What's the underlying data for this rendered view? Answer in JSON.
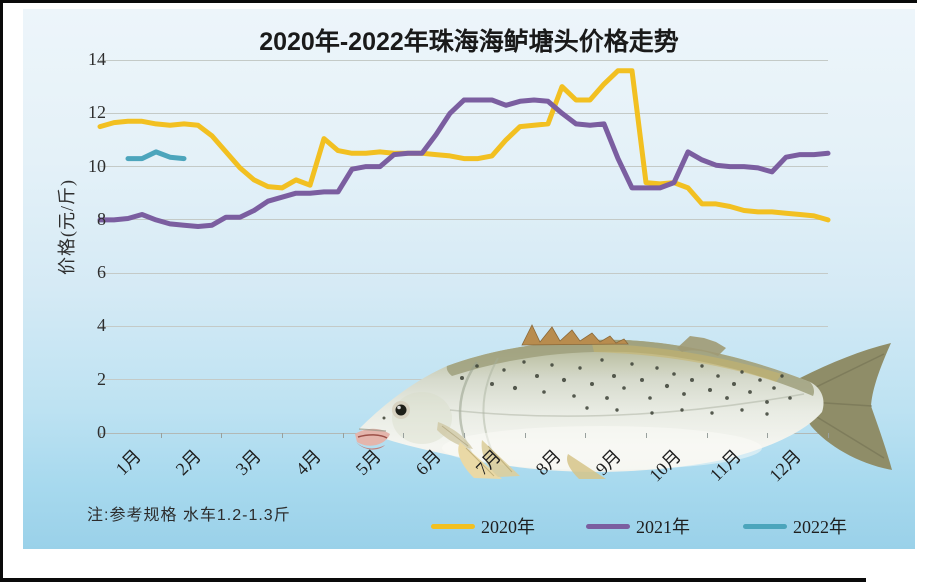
{
  "slide": {
    "title": "2020年-2022年珠海海鲈塘头价格走势",
    "note": "注:参考规格  水车1.2-1.3斤"
  },
  "chart_data": {
    "type": "line",
    "title": "2020年-2022年珠海海鲈塘头价格走势",
    "xlabel": "",
    "ylabel": "价格(元/斤)",
    "ylim": [
      0,
      14
    ],
    "yticks": [
      0,
      2,
      4,
      6,
      8,
      10,
      12,
      14
    ],
    "grid": true,
    "legend_position": "bottom",
    "x_unit": "week",
    "weeks_per_year": 52,
    "categories": [
      "1月",
      "2月",
      "3月",
      "4月",
      "5月",
      "6月",
      "7月",
      "8月",
      "9月",
      "10月",
      "11月",
      "12月"
    ],
    "series": [
      {
        "name": "2020年",
        "color": "#F2C021",
        "start_week": 0,
        "values": [
          11.5,
          11.65,
          11.7,
          11.7,
          11.6,
          11.55,
          11.6,
          11.55,
          11.15,
          10.55,
          9.95,
          9.5,
          9.25,
          9.2,
          9.5,
          9.3,
          11.05,
          10.6,
          10.5,
          10.5,
          10.55,
          10.5,
          10.5,
          10.5,
          10.45,
          10.4,
          10.3,
          10.3,
          10.4,
          11.0,
          11.5,
          11.55,
          11.6,
          13.0,
          12.5,
          12.5,
          13.1,
          13.6,
          13.6,
          9.4,
          9.35,
          9.4,
          9.2,
          8.6,
          8.6,
          8.5,
          8.35,
          8.3,
          8.3,
          8.25,
          8.2,
          8.15,
          8.0
        ]
      },
      {
        "name": "2021年",
        "color": "#7B5EA0",
        "start_week": 0,
        "values": [
          8.0,
          8.0,
          8.05,
          8.2,
          8.0,
          7.85,
          7.8,
          7.75,
          7.8,
          8.1,
          8.1,
          8.35,
          8.7,
          8.85,
          9.0,
          9.0,
          9.05,
          9.05,
          9.9,
          10.0,
          10.0,
          10.45,
          10.5,
          10.5,
          11.2,
          12.0,
          12.5,
          12.5,
          12.5,
          12.3,
          12.45,
          12.5,
          12.45,
          12.0,
          11.6,
          11.55,
          11.6,
          10.3,
          9.2,
          9.2,
          9.2,
          9.4,
          10.55,
          10.25,
          10.05,
          10.0,
          10.0,
          9.95,
          9.8,
          10.35,
          10.45,
          10.45,
          10.5
        ]
      },
      {
        "name": "2022年",
        "color": "#4CA5BC",
        "start_week": 2,
        "values": [
          10.3,
          10.3,
          10.55,
          10.35,
          10.3
        ]
      }
    ]
  }
}
